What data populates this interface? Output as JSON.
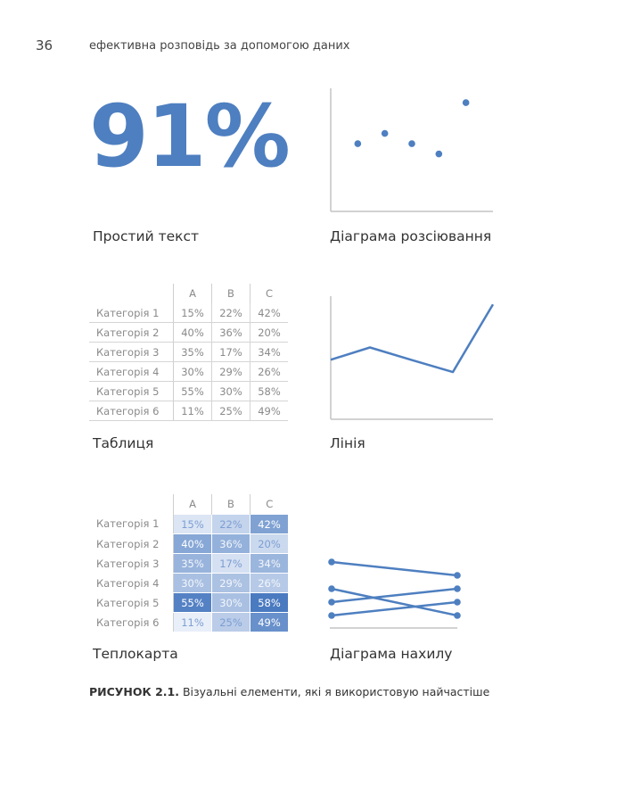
{
  "header": {
    "page_number": "36",
    "running_title": "ефективна розповідь за допомогою даних"
  },
  "simple_text": {
    "value": "91%",
    "caption": "Простий текст"
  },
  "scatter": {
    "caption": "Діаграма розсіювання",
    "chart_data": {
      "type": "scatter",
      "x": [
        1,
        2,
        3,
        4,
        5
      ],
      "y": [
        3.3,
        3.8,
        3.3,
        2.8,
        5.3
      ],
      "xlim": [
        0,
        6
      ],
      "ylim": [
        0,
        6
      ]
    }
  },
  "table": {
    "caption": "Таблиця",
    "columns": [
      "A",
      "B",
      "C"
    ],
    "rows": [
      {
        "label": "Категорія 1",
        "values": [
          "15%",
          "22%",
          "42%"
        ]
      },
      {
        "label": "Категорія 2",
        "values": [
          "40%",
          "36%",
          "20%"
        ]
      },
      {
        "label": "Категорія 3",
        "values": [
          "35%",
          "17%",
          "34%"
        ]
      },
      {
        "label": "Категорія 4",
        "values": [
          "30%",
          "29%",
          "26%"
        ]
      },
      {
        "label": "Категорія 5",
        "values": [
          "55%",
          "30%",
          "58%"
        ]
      },
      {
        "label": "Категорія 6",
        "values": [
          "11%",
          "25%",
          "49%"
        ]
      }
    ]
  },
  "line": {
    "caption": "Лінія",
    "chart_data": {
      "type": "line",
      "x": [
        0,
        1,
        2,
        3,
        4
      ],
      "y": [
        2.9,
        3.5,
        2.9,
        2.3,
        5.6
      ],
      "ylim": [
        0,
        6
      ]
    }
  },
  "heatmap": {
    "caption": "Теплокарта",
    "chart_data": {
      "type": "heatmap",
      "columns": [
        "A",
        "B",
        "C"
      ],
      "rows": [
        "Категорія 1",
        "Категорія 2",
        "Категорія 3",
        "Категорія 4",
        "Категорія 5",
        "Категорія 6"
      ],
      "values": [
        [
          15,
          22,
          42
        ],
        [
          40,
          36,
          20
        ],
        [
          35,
          17,
          34
        ],
        [
          30,
          29,
          26
        ],
        [
          55,
          30,
          58
        ],
        [
          11,
          25,
          49
        ]
      ]
    }
  },
  "slope": {
    "caption": "Діаграма нахилу",
    "chart_data": {
      "type": "line",
      "series": [
        {
          "start": 5.0,
          "end": 4.0
        },
        {
          "start": 2.0,
          "end": 3.0
        },
        {
          "start": 1.0,
          "end": 2.0
        },
        {
          "start": 3.0,
          "end": 1.0
        }
      ]
    }
  },
  "colors": {
    "accent": "#4e7fc0",
    "axis": "#c4c4c4"
  },
  "figure_caption": {
    "label": "РИСУНОК 2.1.",
    "text": " Візуальні елементи, які я використовую найчастіше"
  }
}
